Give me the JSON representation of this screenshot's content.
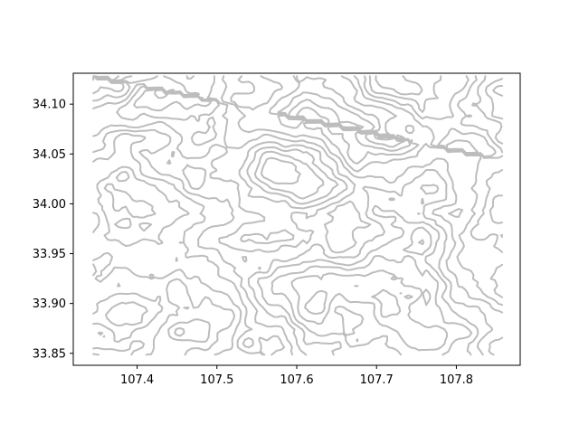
{
  "map": {
    "kind": "contour-map",
    "line_color": "#bdbdbd",
    "frame_color": "#000000",
    "background": "#ffffff",
    "x_axis": {
      "range": [
        107.32,
        107.88
      ],
      "ticks": [
        107.4,
        107.5,
        107.6,
        107.7,
        107.8
      ],
      "tick_labels": [
        "107.4",
        "107.5",
        "107.6",
        "107.7",
        "107.8"
      ]
    },
    "y_axis": {
      "range": [
        33.838,
        34.131
      ],
      "ticks": [
        33.85,
        33.9,
        33.95,
        34.0,
        34.05,
        34.1
      ],
      "tick_labels": [
        "33.85",
        "33.90",
        "33.95",
        "34.00",
        "34.05",
        "34.10"
      ]
    },
    "data_extent": {
      "x": [
        107.345,
        107.858
      ],
      "y": [
        33.848,
        34.128
      ]
    }
  }
}
